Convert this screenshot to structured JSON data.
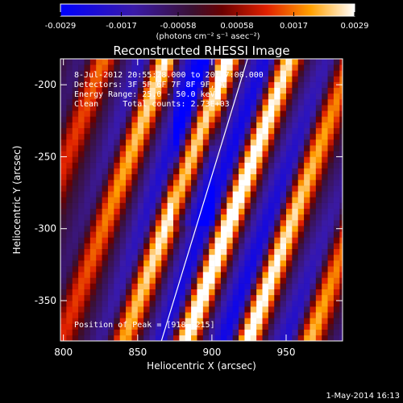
{
  "chart_data": {
    "type": "heatmap",
    "title": "Reconstructed RHESSI Image",
    "xlabel": "Heliocentric X (arcsec)",
    "ylabel": "Heliocentric Y (arcsec)",
    "xlim": [
      798,
      988
    ],
    "ylim": [
      -378,
      -182
    ],
    "x_ticks": [
      800,
      850,
      900,
      950
    ],
    "y_ticks": [
      -200,
      -250,
      -300,
      -350
    ],
    "colorbar": {
      "min": -0.0029,
      "max": 0.0029,
      "ticks": [
        -0.0029,
        -0.0017,
        -0.00058,
        0.00058,
        0.0017,
        0.0029
      ],
      "tick_labels": [
        "-0.0029",
        "-0.0017",
        "-0.00058",
        "0.00058",
        "0.0017",
        "0.0029"
      ],
      "unit_label": "(photons cm⁻² s⁻¹ asec⁻²)"
    },
    "annotations": {
      "time_range": "8-Jul-2012 20:55:28.000 to 20:57:00.000",
      "detectors": "Detectors: 3F 5F 6F 7F 8F 9F, A",
      "energy_range": "Energy Range: 25.0 - 50.0 keV",
      "clean_counts": "Clean     Total counts: 2.73E+03",
      "peak_position": "Position of Peak = [918,-215]"
    },
    "pattern": {
      "description": "diagonal fringe stripes",
      "stripe_period_arcsec": 42,
      "stripe_direction": "lower-left to upper-right"
    },
    "limb_line": [
      [
        866,
        -378
      ],
      [
        924,
        -182
      ]
    ],
    "grid": false,
    "legend": "colorbar top"
  },
  "footer": {
    "date_stamp": "1-May-2014 16:13"
  }
}
